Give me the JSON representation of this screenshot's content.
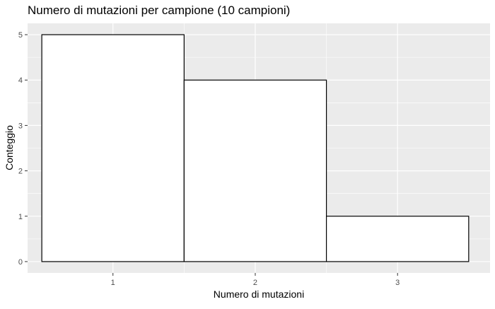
{
  "chart_data": {
    "type": "bar",
    "title": "Numero di mutazioni per campione (10 campioni)",
    "xlabel": "Numero di mutazioni",
    "ylabel": "Conteggio",
    "categories": [
      "1",
      "2",
      "3"
    ],
    "x": [
      1,
      2,
      3
    ],
    "values": [
      5,
      4,
      1
    ],
    "xlim": [
      0.4,
      3.65
    ],
    "ylim": [
      -0.25,
      5.25
    ],
    "xticks": [
      "1",
      "2",
      "3"
    ],
    "yticks": [
      "0",
      "1",
      "2",
      "3",
      "4",
      "5"
    ],
    "grid": true,
    "legend": "none",
    "colors": {
      "panel_background": "#EBEBEB",
      "grid_major": "#FFFFFF",
      "bar_fill": "#FFFFFF",
      "bar_outline": "#000000"
    }
  }
}
